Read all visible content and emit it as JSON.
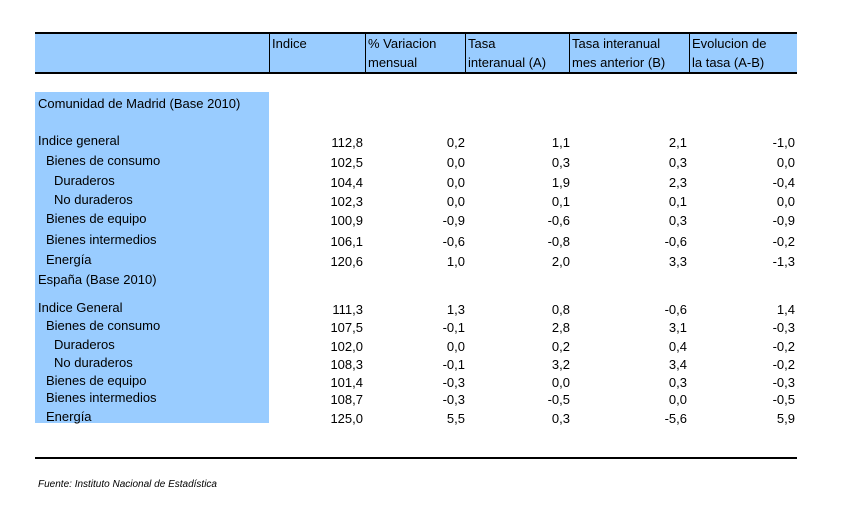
{
  "headers": [
    "Indice",
    "% Variacion mensual",
    "Tasa interanual (A)",
    "Tasa interanual mes anterior (B)",
    "Evolucion de la tasa (A-B)"
  ],
  "header_lines": [
    [
      "Indice",
      ""
    ],
    [
      "% Variacion",
      "mensual"
    ],
    [
      "Tasa",
      "interanual (A)"
    ],
    [
      "Tasa interanual",
      "mes anterior (B)"
    ],
    [
      "Evolucion de",
      "la tasa (A-B)"
    ]
  ],
  "sections": [
    {
      "title": "Comunidad de Madrid (Base 2010)",
      "rows": [
        {
          "label": "Indice general",
          "values": [
            "112,8",
            "0,2",
            "1,1",
            "2,1",
            "-1,0"
          ]
        },
        {
          "label": "Bienes de consumo",
          "values": [
            "102,5",
            "0,0",
            "0,3",
            "0,3",
            "0,0"
          ]
        },
        {
          "label": "Duraderos",
          "values": [
            "104,4",
            "0,0",
            "1,9",
            "2,3",
            "-0,4"
          ]
        },
        {
          "label": "No duraderos",
          "values": [
            "102,3",
            "0,0",
            "0,1",
            "0,1",
            "0,0"
          ]
        },
        {
          "label": "Bienes de equipo",
          "values": [
            "100,9",
            "-0,9",
            "-0,6",
            "0,3",
            "-0,9"
          ]
        },
        {
          "label": "Bienes intermedios",
          "values": [
            "106,1",
            "-0,6",
            "-0,8",
            "-0,6",
            "-0,2"
          ]
        },
        {
          "label": "Energía",
          "values": [
            "120,6",
            "1,0",
            "2,0",
            "3,3",
            "-1,3"
          ]
        }
      ]
    },
    {
      "title": "España (Base 2010)",
      "rows": [
        {
          "label": "Indice General",
          "values": [
            "111,3",
            "1,3",
            "0,8",
            "-0,6",
            "1,4"
          ]
        },
        {
          "label": "Bienes de consumo",
          "values": [
            "107,5",
            "-0,1",
            "2,8",
            "3,1",
            "-0,3"
          ]
        },
        {
          "label": "Duraderos",
          "values": [
            "102,0",
            "0,0",
            "0,2",
            "0,4",
            "-0,2"
          ]
        },
        {
          "label": "No duraderos",
          "values": [
            "108,3",
            "-0,1",
            "3,2",
            "3,4",
            "-0,2"
          ]
        },
        {
          "label": "Bienes de equipo",
          "values": [
            "101,4",
            "-0,3",
            "0,0",
            "0,3",
            "-0,3"
          ]
        },
        {
          "label": "Bienes intermedios",
          "values": [
            "108,7",
            "-0,3",
            "-0,5",
            "0,0",
            "-0,5"
          ]
        },
        {
          "label": "Energía",
          "values": [
            "125,0",
            "5,5",
            "0,3",
            "-5,6",
            "5,9"
          ]
        }
      ]
    }
  ],
  "footer": "Fuente: Instituto Nacional de Estadística",
  "colors": {
    "band": "#99ccff"
  }
}
